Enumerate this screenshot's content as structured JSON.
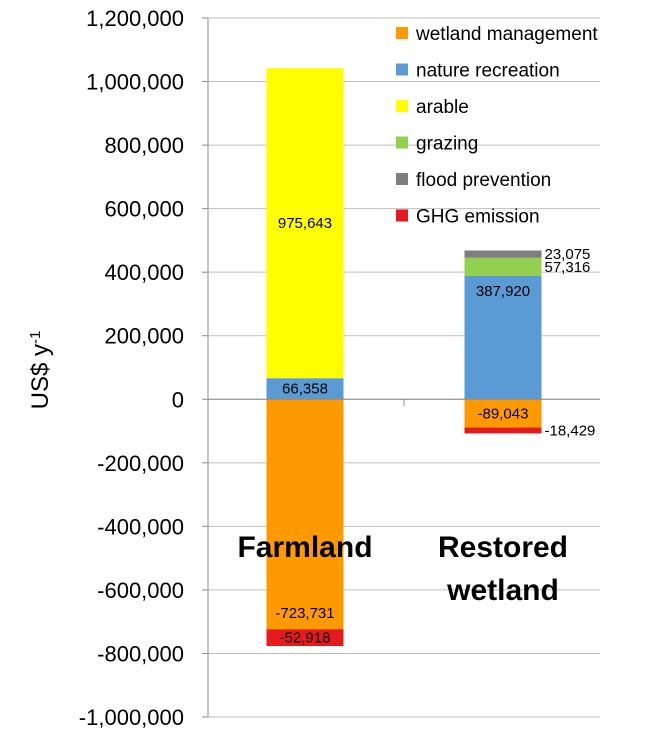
{
  "chart_data": {
    "type": "bar",
    "stacked": true,
    "ylabel": "US$ y",
    "ylabel_superscript": "-1",
    "ylim": [
      -1000000,
      1200000
    ],
    "ytick_step": 200000,
    "ytick_labels": [
      "1,200,000",
      "1,000,000",
      "800,000",
      "600,000",
      "400,000",
      "200,000",
      "0",
      "-200,000",
      "-400,000",
      "-600,000",
      "-800,000",
      "-1,000,000"
    ],
    "grid": true,
    "legend_position": "top-right",
    "categories": [
      {
        "label_lines": [
          "Farmland"
        ]
      },
      {
        "label_lines": [
          "Restored",
          "wetland"
        ]
      }
    ],
    "series": [
      {
        "name": "wetland management",
        "color": "#FF9900",
        "values": [
          -723731,
          -89043
        ]
      },
      {
        "name": "nature recreation",
        "color": "#5B9BD5",
        "values": [
          66358,
          387920
        ]
      },
      {
        "name": "arable",
        "color": "#FFFF00",
        "values": [
          975643,
          0
        ]
      },
      {
        "name": "grazing",
        "color": "#92D050",
        "values": [
          0,
          57316
        ]
      },
      {
        "name": "flood prevention",
        "color": "#7F7F7F",
        "values": [
          0,
          23075
        ]
      },
      {
        "name": "GHG emission",
        "color": "#E41A1C",
        "values": [
          -52918,
          -18429
        ]
      }
    ],
    "data_labels": [
      {
        "text": "66,358",
        "category": 0,
        "series": "nature recreation",
        "position": "inside"
      },
      {
        "text": "975,643",
        "category": 0,
        "series": "arable",
        "position": "inside"
      },
      {
        "text": "-52,918",
        "category": 0,
        "series": "GHG emission",
        "position": "inside"
      },
      {
        "text": "-723,731",
        "category": 0,
        "series": "wetland management",
        "position": "inside-end"
      },
      {
        "text": "387,920",
        "category": 1,
        "series": "nature recreation",
        "position": "inside-top"
      },
      {
        "text": "57,316",
        "category": 1,
        "series": "grazing",
        "position": "outside-right"
      },
      {
        "text": "23,075",
        "category": 1,
        "series": "flood prevention",
        "position": "outside-right"
      },
      {
        "text": "-18,429",
        "category": 1,
        "series": "GHG emission",
        "position": "outside-right"
      },
      {
        "text": "-89,043",
        "category": 1,
        "series": "wetland management",
        "position": "inside"
      }
    ]
  }
}
